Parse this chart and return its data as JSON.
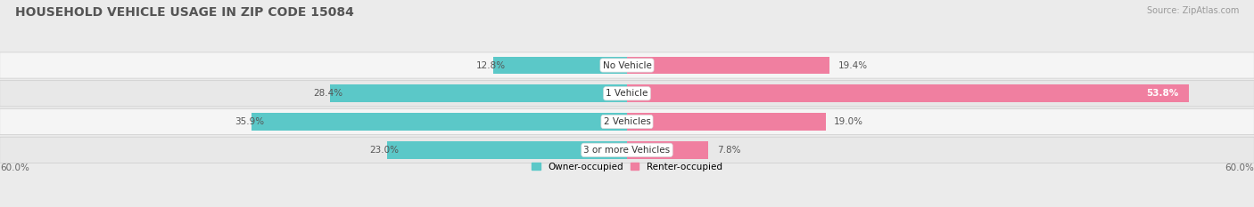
{
  "title": "HOUSEHOLD VEHICLE USAGE IN ZIP CODE 15084",
  "source": "Source: ZipAtlas.com",
  "categories": [
    "No Vehicle",
    "1 Vehicle",
    "2 Vehicles",
    "3 or more Vehicles"
  ],
  "owner_values": [
    12.8,
    28.4,
    35.9,
    23.0
  ],
  "renter_values": [
    19.4,
    53.8,
    19.0,
    7.8
  ],
  "owner_color": "#5bc8c8",
  "renter_color": "#f07fa0",
  "axis_max": 60.0,
  "bg_color": "#ebebeb",
  "row_light_color": "#f5f5f5",
  "row_dark_color": "#e8e8e8",
  "title_color": "#555555",
  "value_color": "#666666",
  "source_color": "#999999",
  "legend_owner": "Owner-occupied",
  "legend_renter": "Renter-occupied",
  "axis_label_left": "60.0%",
  "axis_label_right": "60.0%",
  "title_fontsize": 10,
  "bar_fontsize": 7.5,
  "source_fontsize": 7
}
